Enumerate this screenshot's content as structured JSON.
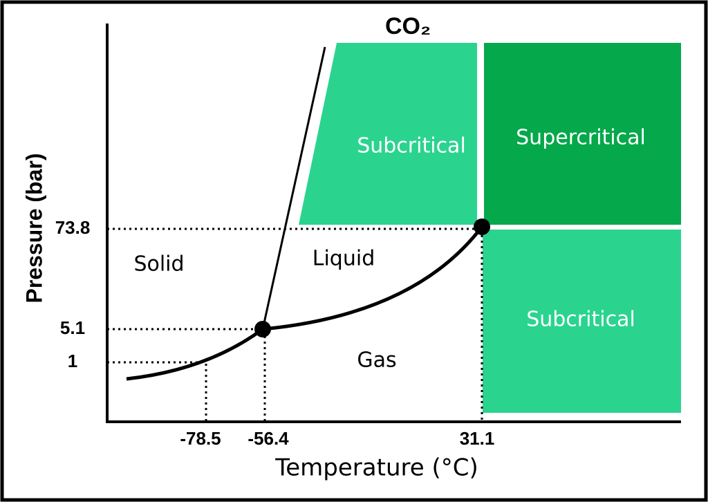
{
  "title": "CO₂",
  "axes": {
    "x_label": "Temperature (°C)",
    "y_label": "Pressure (bar)",
    "x_ticks": [
      "-78.5",
      "-56.4",
      "31.1"
    ],
    "y_ticks": [
      "73.8",
      "5.1",
      "1"
    ]
  },
  "regions": {
    "solid": "Solid",
    "liquid": "Liquid",
    "gas": "Gas",
    "subcritical_upper": "Subcritical",
    "supercritical": "Supercritical",
    "subcritical_lower": "Subcritical"
  }
}
